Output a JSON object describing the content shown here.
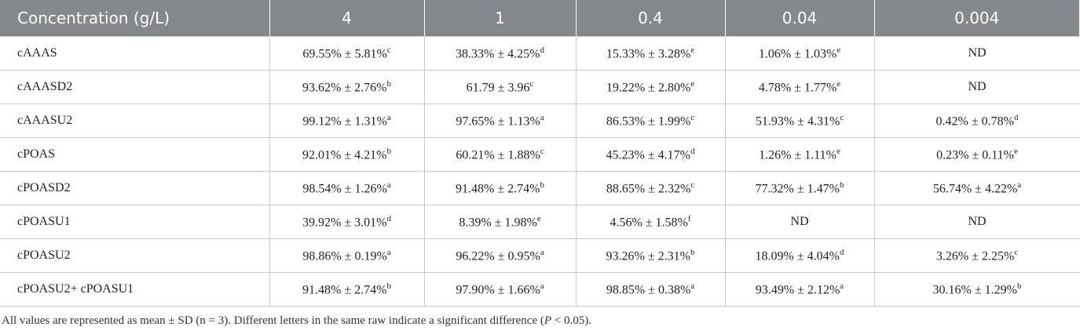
{
  "table": {
    "header": [
      "Concentration (g/L)",
      "4",
      "1",
      "0.4",
      "0.04",
      "0.004"
    ],
    "rows": [
      {
        "label": "cAAAS",
        "cells": [
          {
            "value": "69.55% ± 5.81%",
            "sup": "c"
          },
          {
            "value": "38.33% ± 4.25%",
            "sup": "d"
          },
          {
            "value": "15.33% ± 3.28%",
            "sup": "e"
          },
          {
            "value": "1.06% ± 1.03%",
            "sup": "e"
          },
          {
            "value": "ND"
          }
        ]
      },
      {
        "label": "cAAASD2",
        "cells": [
          {
            "value": "93.62% ± 2.76%",
            "sup": "b"
          },
          {
            "value": "61.79 ± 3.96",
            "sup": "c"
          },
          {
            "value": "19.22% ± 2.80%",
            "sup": "e"
          },
          {
            "value": "4.78% ± 1.77%",
            "sup": "e"
          },
          {
            "value": "ND"
          }
        ]
      },
      {
        "label": "cAAASU2",
        "cells": [
          {
            "value": "99.12% ± 1.31%",
            "sup": "a"
          },
          {
            "value": "97.65% ± 1.13%",
            "sup": "a"
          },
          {
            "value": "86.53% ± 1.99%",
            "sup": "c"
          },
          {
            "value": "51.93% ± 4.31%",
            "sup": "c"
          },
          {
            "value": "0.42% ± 0.78%",
            "sup": "d"
          }
        ]
      },
      {
        "label": "cPOAS",
        "cells": [
          {
            "value": "92.01% ± 4.21%",
            "sup": "b"
          },
          {
            "value": "60.21% ± 1.88%",
            "sup": "c"
          },
          {
            "value": "45.23% ± 4.17%",
            "sup": "d"
          },
          {
            "value": "1.26% ± 1.11%",
            "sup": "e"
          },
          {
            "value": "0.23% ± 0.11%",
            "sup": "e"
          }
        ]
      },
      {
        "label": "cPOASD2",
        "cells": [
          {
            "value": "98.54% ± 1.26%",
            "sup": "a"
          },
          {
            "value": "91.48% ± 2.74%",
            "sup": "b"
          },
          {
            "value": "88.65% ± 2.32%",
            "sup": "c"
          },
          {
            "value": "77.32% ± 1.47%",
            "sup": "b"
          },
          {
            "value": "56.74% ± 4.22%",
            "sup": "a"
          }
        ]
      },
      {
        "label": "cPOASU1",
        "cells": [
          {
            "value": "39.92% ± 3.01%",
            "sup": "d"
          },
          {
            "value": "8.39% ± 1.98%",
            "sup": "e"
          },
          {
            "value": "4.56% ± 1.58%",
            "sup": "f"
          },
          {
            "value": "ND"
          },
          {
            "value": "ND"
          }
        ]
      },
      {
        "label": "cPOASU2",
        "cells": [
          {
            "value": "98.86% ± 0.19%",
            "sup": "a"
          },
          {
            "value": "96.22% ± 0.95%",
            "sup": "a"
          },
          {
            "value": "93.26% ± 2.31%",
            "sup": "b"
          },
          {
            "value": "18.09% ± 4.04%",
            "sup": "d"
          },
          {
            "value": "3.26% ± 2.25%",
            "sup": "c"
          }
        ]
      },
      {
        "label": "cPOASU2+ cPOASU1",
        "cells": [
          {
            "value": "91.48% ± 2.74%",
            "sup": "b"
          },
          {
            "value": "97.90% ± 1.66%",
            "sup": "a"
          },
          {
            "value": "98.85% ± 0.38%",
            "sup": "a"
          },
          {
            "value": "93.49% ± 2.12%",
            "sup": "a"
          },
          {
            "value": "30.16% ± 1.29%",
            "sup": "b"
          }
        ]
      }
    ]
  },
  "footnote": {
    "before": "All values are represented as mean ± SD (n = 3). Different letters in the same raw indicate a significant difference (",
    "italic": "P",
    "after": " < 0.05)."
  }
}
